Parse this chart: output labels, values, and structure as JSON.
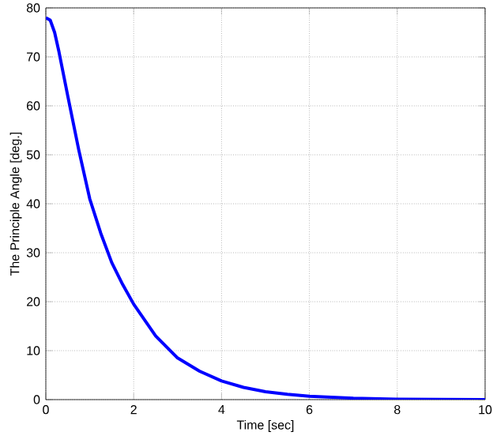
{
  "chart_data": {
    "type": "line",
    "xlabel": "Time [sec]",
    "ylabel": "The Principle Angle [deg.]",
    "xlim": [
      0,
      10
    ],
    "ylim": [
      0,
      80
    ],
    "xticks": [
      0,
      2,
      4,
      6,
      8,
      10
    ],
    "yticks": [
      0,
      10,
      20,
      30,
      40,
      50,
      60,
      70,
      80
    ],
    "grid": true,
    "series": [
      {
        "color": "#0000ff",
        "x": [
          0,
          0.1,
          0.2,
          0.3,
          0.5,
          0.75,
          1,
          1.25,
          1.5,
          1.75,
          2,
          2.5,
          3,
          3.5,
          4,
          4.5,
          5,
          5.5,
          6,
          7,
          8,
          9,
          10
        ],
        "values": [
          78,
          77.5,
          75,
          71,
          62,
          51,
          41,
          34,
          28,
          23.5,
          19.5,
          13,
          8.5,
          5.8,
          3.8,
          2.5,
          1.6,
          1.1,
          0.7,
          0.3,
          0.1,
          0.05,
          0
        ]
      }
    ]
  }
}
